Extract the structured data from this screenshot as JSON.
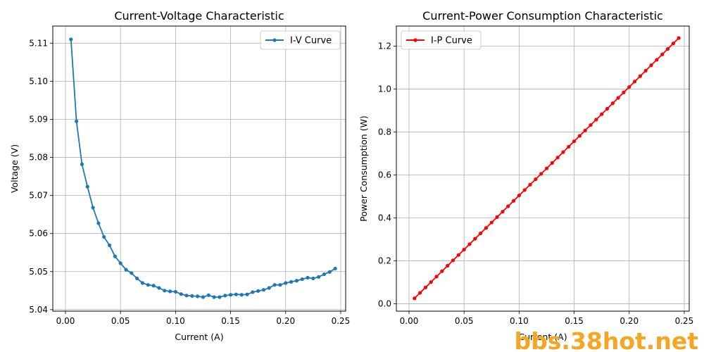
{
  "chart_data": [
    {
      "type": "line",
      "title": "Current-Voltage Characteristic",
      "xlabel": "Current (A)",
      "ylabel": "Voltage (V)",
      "xlim": [
        -0.0115,
        0.2545
      ],
      "ylim": [
        5.0396,
        5.1145
      ],
      "xticks": [
        "0.00",
        "0.05",
        "0.10",
        "0.15",
        "0.20",
        "0.25"
      ],
      "xtick_values": [
        0,
        0.05,
        0.1,
        0.15,
        0.2,
        0.25
      ],
      "yticks": [
        "5.04",
        "5.05",
        "5.06",
        "5.07",
        "5.08",
        "5.09",
        "5.10",
        "5.11"
      ],
      "ytick_values": [
        5.04,
        5.05,
        5.06,
        5.07,
        5.08,
        5.09,
        5.1,
        5.11
      ],
      "grid": true,
      "legend_position": "top-right",
      "series": [
        {
          "name": "I-V Curve",
          "color": "#1f77b4",
          "marker": "circle",
          "x": [
            0.005,
            0.01,
            0.015,
            0.02,
            0.025,
            0.03,
            0.035,
            0.04,
            0.045,
            0.05,
            0.055,
            0.06,
            0.065,
            0.07,
            0.075,
            0.08,
            0.085,
            0.09,
            0.095,
            0.1,
            0.105,
            0.11,
            0.115,
            0.12,
            0.125,
            0.13,
            0.135,
            0.14,
            0.145,
            0.15,
            0.155,
            0.16,
            0.165,
            0.17,
            0.175,
            0.18,
            0.185,
            0.19,
            0.195,
            0.2,
            0.205,
            0.21,
            0.215,
            0.22,
            0.225,
            0.23,
            0.235,
            0.24,
            0.245
          ],
          "y": [
            5.111,
            5.0895,
            5.0782,
            5.0723,
            5.0668,
            5.0627,
            5.0591,
            5.0569,
            5.054,
            5.0522,
            5.0505,
            5.0496,
            5.0482,
            5.047,
            5.0465,
            5.0463,
            5.0457,
            5.045,
            5.0448,
            5.0447,
            5.0441,
            5.0437,
            5.0436,
            5.0435,
            5.0433,
            5.0438,
            5.0433,
            5.0433,
            5.0437,
            5.0439,
            5.044,
            5.0439,
            5.044,
            5.0446,
            5.0449,
            5.0452,
            5.0457,
            5.0465,
            5.0465,
            5.047,
            5.0473,
            5.0476,
            5.048,
            5.0484,
            5.0482,
            5.0486,
            5.0493,
            5.0499,
            5.0508
          ]
        }
      ]
    },
    {
      "type": "line",
      "title": "Current-Power Consumption Characteristic",
      "xlabel": "Current (A)",
      "ylabel": "Power Consumption (W)",
      "xlim": [
        -0.0115,
        0.2545
      ],
      "ylim": [
        -0.0342,
        1.2931
      ],
      "xticks": [
        "0.00",
        "0.05",
        "0.10",
        "0.15",
        "0.20",
        "0.25"
      ],
      "xtick_values": [
        0,
        0.05,
        0.1,
        0.15,
        0.2,
        0.25
      ],
      "yticks": [
        "0.0",
        "0.2",
        "0.4",
        "0.6",
        "0.8",
        "1.0",
        "1.2"
      ],
      "ytick_values": [
        0,
        0.2,
        0.4,
        0.6,
        0.8,
        1.0,
        1.2
      ],
      "grid": true,
      "legend_position": "top-left",
      "series": [
        {
          "name": "I-P Curve",
          "color": "#ff0000",
          "marker": "circle",
          "x": [
            0.005,
            0.01,
            0.015,
            0.02,
            0.025,
            0.03,
            0.035,
            0.04,
            0.045,
            0.05,
            0.055,
            0.06,
            0.065,
            0.07,
            0.075,
            0.08,
            0.085,
            0.09,
            0.095,
            0.1,
            0.105,
            0.11,
            0.115,
            0.12,
            0.125,
            0.13,
            0.135,
            0.14,
            0.145,
            0.15,
            0.155,
            0.16,
            0.165,
            0.17,
            0.175,
            0.18,
            0.185,
            0.19,
            0.195,
            0.2,
            0.205,
            0.21,
            0.215,
            0.22,
            0.225,
            0.23,
            0.235,
            0.24,
            0.245
          ],
          "y": [
            0.0256,
            0.0509,
            0.0762,
            0.1014,
            0.1267,
            0.1519,
            0.1771,
            0.2023,
            0.2274,
            0.2526,
            0.2778,
            0.303,
            0.3281,
            0.3533,
            0.3785,
            0.4037,
            0.4289,
            0.454,
            0.4793,
            0.5045,
            0.5297,
            0.5548,
            0.58,
            0.6052,
            0.6304,
            0.6557,
            0.6808,
            0.7061,
            0.7313,
            0.7566,
            0.7818,
            0.807,
            0.8323,
            0.8576,
            0.8829,
            0.9081,
            0.9335,
            0.9589,
            0.9841,
            1.0094,
            1.0347,
            1.06,
            1.0853,
            1.1107,
            1.1359,
            1.1612,
            1.1866,
            1.212,
            1.2374
          ]
        }
      ]
    }
  ],
  "watermark": "bbs.38hot.net"
}
